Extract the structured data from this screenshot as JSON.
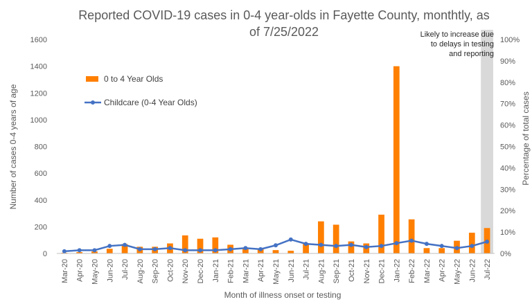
{
  "chart_data": {
    "type": "bar",
    "title_line1": "Reported COVID-19 cases in 0-4 year-olds in Fayette County, monthtly, as",
    "title_line2": "of 7/25/2022",
    "xlabel": "Month of illness onset or testing",
    "ylabel": "Number of cases 0-4 years of age",
    "y2label": "Percentage of total cases",
    "ylim": [
      0,
      1600
    ],
    "y2lim": [
      0,
      100
    ],
    "yticks": [
      0,
      200,
      400,
      600,
      800,
      1000,
      1200,
      1400,
      1600
    ],
    "y2ticks": [
      "0%",
      "10%",
      "20%",
      "30%",
      "40%",
      "50%",
      "60%",
      "70%",
      "80%",
      "90%",
      "100%"
    ],
    "categories": [
      "Mar-20",
      "Apr-20",
      "May-20",
      "Jun-20",
      "Jul-20",
      "Aug-20",
      "Sep-20",
      "Oct-20",
      "Nov-20",
      "Dec-20",
      "Jan-21",
      "Feb-21",
      "Mar-21",
      "Apr-21",
      "May-21",
      "Jun-21",
      "Jul-21",
      "Aug-21",
      "Sep-21",
      "Oct-21",
      "Nov-21",
      "Dec-21",
      "Jan-22",
      "Feb-22",
      "Mar-22",
      "Apr-22",
      "May-22",
      "Jun-22",
      "Jul-22"
    ],
    "series": [
      {
        "name": "0 to 4 Year Olds",
        "kind": "bar",
        "axis": "left",
        "color": "#FF7F00",
        "values": [
          5,
          10,
          15,
          35,
          70,
          50,
          50,
          75,
          135,
          110,
          120,
          65,
          40,
          35,
          25,
          20,
          70,
          240,
          215,
          90,
          75,
          290,
          1400,
          255,
          40,
          40,
          95,
          155,
          190
        ]
      },
      {
        "name": "Childcare (0-4 Year Olds)",
        "kind": "line",
        "axis": "right",
        "color": "#4472C4",
        "values": [
          1,
          1.5,
          1.5,
          3.5,
          4,
          2,
          2,
          2.5,
          1.5,
          1.5,
          1.5,
          2,
          2.5,
          2,
          3.8,
          6.5,
          4.5,
          4,
          3.5,
          4,
          3,
          3.5,
          4.8,
          6,
          4.5,
          3.5,
          2.5,
          3.5,
          5.5
        ]
      }
    ],
    "annotation": {
      "lines": [
        "Likely to increase due",
        "to delays in testing",
        "and reporting"
      ],
      "shaded_category": "Jul-22",
      "shade_color": "#D9D9D9"
    },
    "legend_placement": "top-left",
    "grid": false
  }
}
